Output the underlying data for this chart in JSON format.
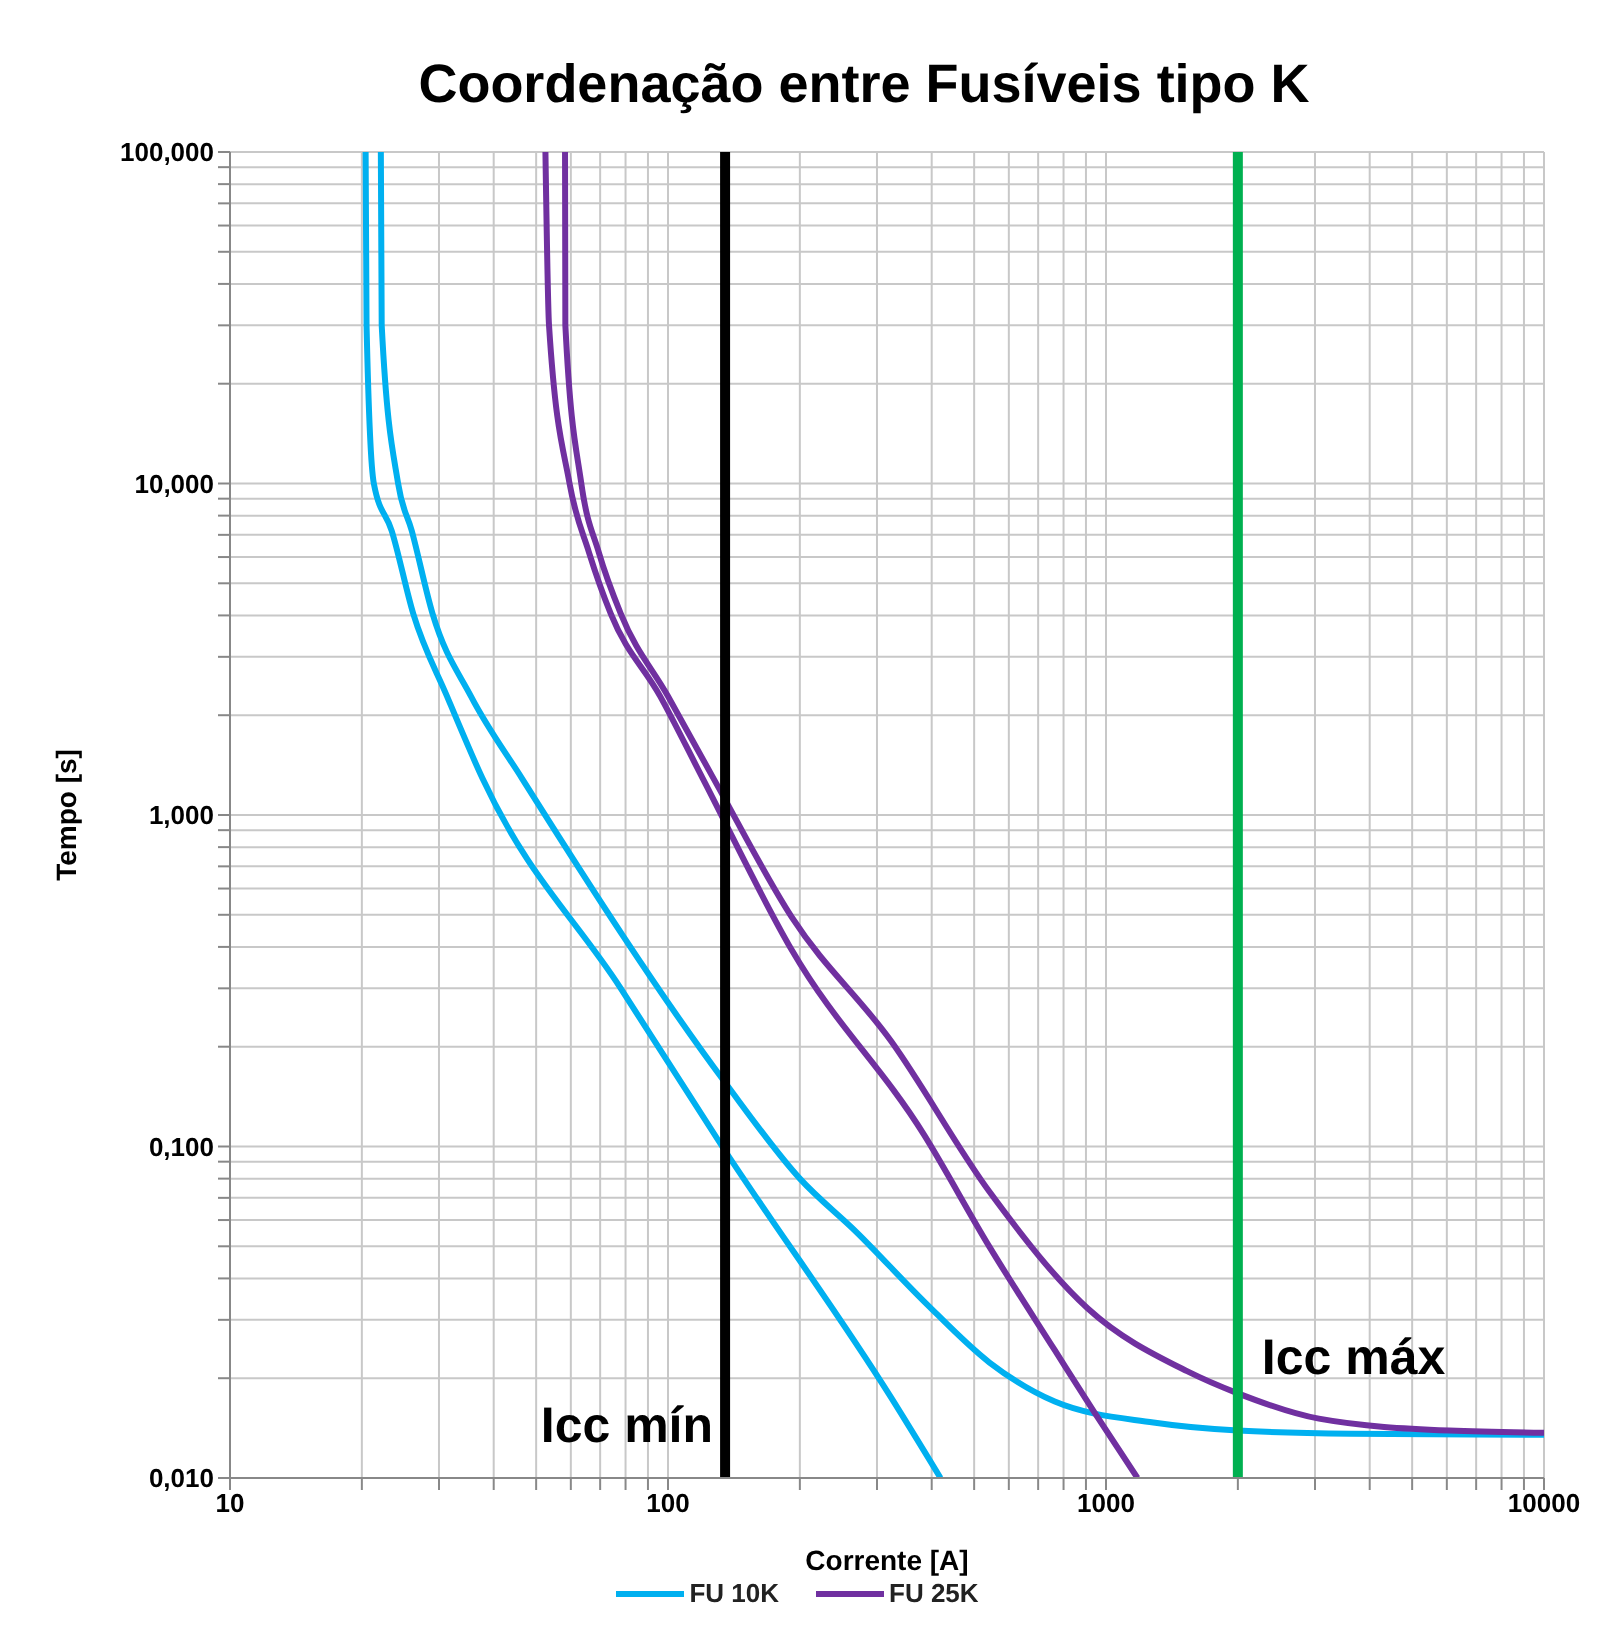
{
  "chart_data": {
    "type": "line",
    "title": "Coordenação entre Fusíveis tipo K",
    "xlabel": "Corrente [A]",
    "ylabel": "Tempo [s]",
    "log": "xy",
    "grid": true,
    "legend": "bottom",
    "marker": "none",
    "line_style": "solid",
    "xlim": [
      10,
      10000
    ],
    "ylim": [
      0.01,
      100
    ],
    "xticks": [
      10,
      {
        "value": 20,
        "label": null
      },
      {
        "value": 30,
        "label": null
      },
      {
        "value": 40,
        "label": null
      },
      {
        "value": 50,
        "label": null
      },
      {
        "value": 60,
        "label": null
      },
      {
        "value": 70,
        "label": null
      },
      {
        "value": 80,
        "label": null
      },
      {
        "value": 90,
        "label": null
      },
      100,
      {
        "value": 200,
        "label": null
      },
      {
        "value": 300,
        "label": null
      },
      {
        "value": 400,
        "label": null
      },
      {
        "value": 500,
        "label": null
      },
      {
        "value": 600,
        "label": null
      },
      {
        "value": 700,
        "label": null
      },
      {
        "value": 800,
        "label": null
      },
      {
        "value": 900,
        "label": null
      },
      1000,
      {
        "value": 2000,
        "label": null
      },
      {
        "value": 3000,
        "label": null
      },
      {
        "value": 4000,
        "label": null
      },
      {
        "value": 5000,
        "label": null
      },
      {
        "value": 6000,
        "label": null
      },
      {
        "value": 7000,
        "label": null
      },
      {
        "value": 8000,
        "label": null
      },
      {
        "value": 9000,
        "label": null
      },
      10000
    ],
    "yticks": [
      {
        "value": 0.01,
        "label": "0,010"
      },
      {
        "value": 0.02,
        "label": null
      },
      {
        "value": 0.03,
        "label": null
      },
      {
        "value": 0.04,
        "label": null
      },
      {
        "value": 0.05,
        "label": null
      },
      {
        "value": 0.06,
        "label": null
      },
      {
        "value": 0.07,
        "label": null
      },
      {
        "value": 0.08,
        "label": null
      },
      {
        "value": 0.09,
        "label": null
      },
      {
        "value": 0.1,
        "label": "0,100"
      },
      {
        "value": 0.2,
        "label": null
      },
      {
        "value": 0.3,
        "label": null
      },
      {
        "value": 0.4,
        "label": null
      },
      {
        "value": 0.5,
        "label": null
      },
      {
        "value": 0.6,
        "label": null
      },
      {
        "value": 0.7,
        "label": null
      },
      {
        "value": 0.8,
        "label": null
      },
      {
        "value": 0.9,
        "label": null
      },
      {
        "value": 1,
        "label": "1,000"
      },
      {
        "value": 2,
        "label": null
      },
      {
        "value": 3,
        "label": null
      },
      {
        "value": 4,
        "label": null
      },
      {
        "value": 5,
        "label": null
      },
      {
        "value": 6,
        "label": null
      },
      {
        "value": 7,
        "label": null
      },
      {
        "value": 8,
        "label": null
      },
      {
        "value": 9,
        "label": null
      },
      {
        "value": 10,
        "label": "10,000"
      },
      {
        "value": 20,
        "label": null
      },
      {
        "value": 30,
        "label": null
      },
      {
        "value": 40,
        "label": null
      },
      {
        "value": 50,
        "label": null
      },
      {
        "value": 60,
        "label": null
      },
      {
        "value": 70,
        "label": null
      },
      {
        "value": 80,
        "label": null
      },
      {
        "value": 90,
        "label": null
      },
      {
        "value": 100,
        "label": "100,000"
      }
    ],
    "series": [
      {
        "name": "FU 10K",
        "color": "#00b0f0",
        "x": [
          20.4,
          20.5,
          21.3,
          23.4,
          26.2,
          31.3,
          37.7,
          78,
          133,
          323,
          419
        ],
        "values": [
          100,
          30,
          10,
          7.2,
          4.05,
          2.28,
          1.29,
          0.3,
          0.1,
          0.0175,
          0.01
        ]
      },
      {
        "color": "#00b0f0",
        "x": [
          22.1,
          22.2,
          24.2,
          26,
          29,
          35.5,
          46.4,
          135,
          200,
          270,
          385,
          542,
          764,
          1283,
          2000,
          3622,
          10000
        ],
        "values": [
          100,
          30,
          10,
          7.2,
          4.05,
          2.28,
          1.29,
          0.156,
          0.08,
          0.055,
          0.034,
          0.0223,
          0.017,
          0.0147,
          0.0139,
          0.0136,
          0.0135
        ]
      },
      {
        "name": "FU 25K",
        "color": "#7030a0",
        "x": [
          52.5,
          53.5,
          59.6,
          66,
          74,
          96,
          120,
          192,
          385,
          542,
          764,
          940,
          1180
        ],
        "values": [
          100,
          30,
          10,
          6.2,
          4.05,
          2.28,
          1.29,
          0.39,
          0.108,
          0.0498,
          0.0243,
          0.0158,
          0.01
        ]
      },
      {
        "color": "#7030a0",
        "x": [
          58.2,
          58.3,
          63.4,
          69.5,
          78,
          100,
          127,
          192,
          323,
          542,
          910,
          1531,
          2000,
          3062,
          6080,
          10000
        ],
        "values": [
          100,
          30,
          10,
          6.2,
          4.05,
          2.28,
          1.29,
          0.49,
          0.208,
          0.073,
          0.0324,
          0.021,
          0.018,
          0.0151,
          0.0139,
          0.0137
        ]
      }
    ],
    "ref_lines": [
      {
        "axis": "x",
        "value": 135,
        "label": "Icc mín",
        "color": "#000000"
      },
      {
        "axis": "x",
        "value": 2000,
        "label": "Icc máx",
        "color": "#00b050"
      }
    ]
  }
}
